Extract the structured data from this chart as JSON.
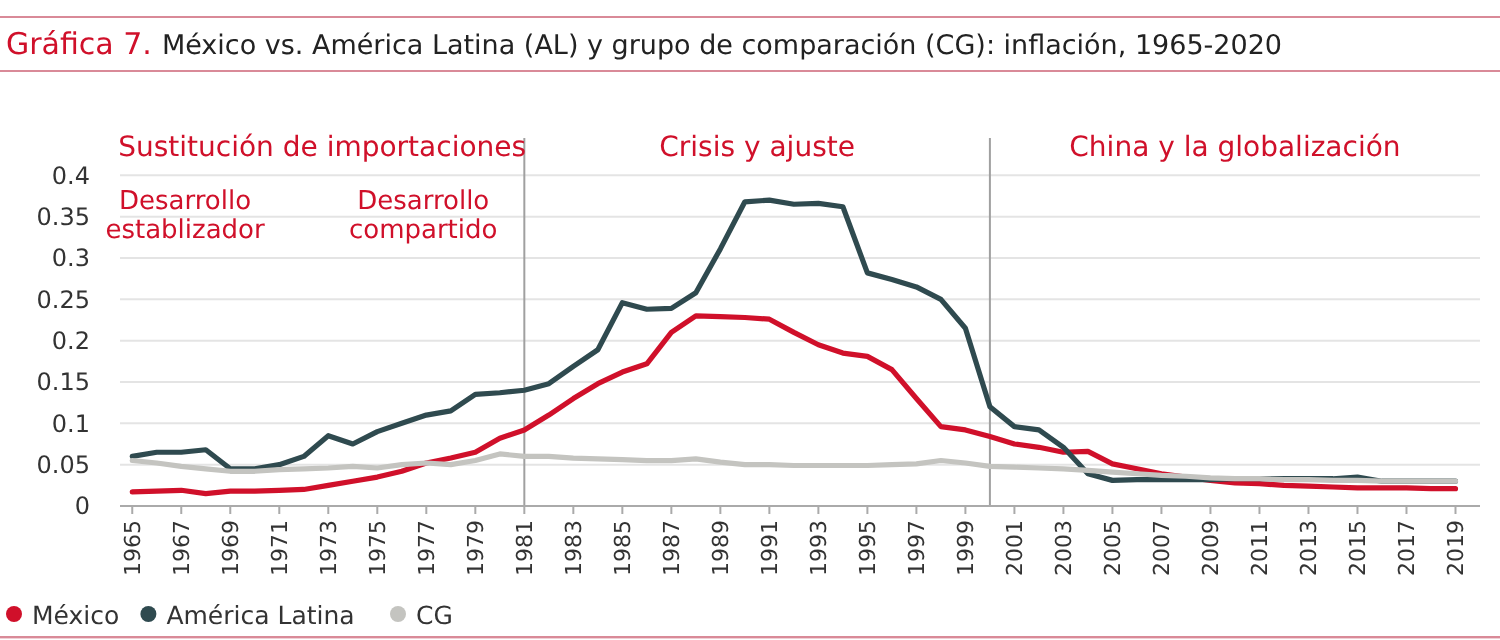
{
  "chart_data": {
    "type": "line",
    "title": "Gráfica 7.",
    "subtitle": "México vs. América Latina (AL) y grupo de comparación (CG): inflación, 1965-2020",
    "x": [
      1965,
      1966,
      1967,
      1968,
      1969,
      1970,
      1971,
      1972,
      1973,
      1974,
      1975,
      1976,
      1977,
      1978,
      1979,
      1980,
      1981,
      1982,
      1983,
      1984,
      1985,
      1986,
      1987,
      1988,
      1989,
      1990,
      1991,
      1992,
      1993,
      1994,
      1995,
      1996,
      1997,
      1998,
      1999,
      2000,
      2001,
      2002,
      2003,
      2004,
      2005,
      2006,
      2007,
      2008,
      2009,
      2010,
      2011,
      2012,
      2013,
      2014,
      2015,
      2016,
      2017,
      2018,
      2019
    ],
    "series": [
      {
        "name": "México",
        "color": "#d0102a",
        "values": [
          0.017,
          0.018,
          0.019,
          0.015,
          0.018,
          0.018,
          0.019,
          0.02,
          0.025,
          0.03,
          0.035,
          0.042,
          0.052,
          0.058,
          0.065,
          0.082,
          0.092,
          0.11,
          0.13,
          0.148,
          0.162,
          0.172,
          0.21,
          0.23,
          0.229,
          0.228,
          0.226,
          0.21,
          0.195,
          0.185,
          0.181,
          0.165,
          0.13,
          0.096,
          0.092,
          0.084,
          0.075,
          0.071,
          0.065,
          0.066,
          0.051,
          0.045,
          0.039,
          0.035,
          0.031,
          0.028,
          0.027,
          0.025,
          0.024,
          0.023,
          0.022,
          0.022,
          0.022,
          0.021,
          0.021
        ]
      },
      {
        "name": "América Latina",
        "color": "#2f4a4f",
        "values": [
          0.06,
          0.065,
          0.065,
          0.068,
          0.045,
          0.045,
          0.05,
          0.06,
          0.085,
          0.075,
          0.09,
          0.1,
          0.11,
          0.115,
          0.135,
          0.137,
          0.14,
          0.148,
          0.169,
          0.189,
          0.246,
          0.238,
          0.239,
          0.258,
          0.311,
          0.368,
          0.37,
          0.365,
          0.366,
          0.362,
          0.282,
          0.274,
          0.265,
          0.25,
          0.215,
          0.12,
          0.096,
          0.092,
          0.071,
          0.039,
          0.031,
          0.032,
          0.032,
          0.032,
          0.032,
          0.033,
          0.033,
          0.033,
          0.033,
          0.033,
          0.035,
          0.03,
          0.03,
          0.03,
          0.03
        ]
      },
      {
        "name": "CG",
        "color": "#c4c4c0",
        "values": [
          0.055,
          0.052,
          0.048,
          0.045,
          0.042,
          0.042,
          0.044,
          0.045,
          0.046,
          0.048,
          0.046,
          0.05,
          0.052,
          0.05,
          0.055,
          0.063,
          0.06,
          0.06,
          0.058,
          0.057,
          0.056,
          0.055,
          0.055,
          0.057,
          0.053,
          0.05,
          0.05,
          0.049,
          0.049,
          0.049,
          0.049,
          0.05,
          0.051,
          0.055,
          0.052,
          0.048,
          0.047,
          0.046,
          0.045,
          0.043,
          0.041,
          0.039,
          0.037,
          0.036,
          0.034,
          0.033,
          0.033,
          0.032,
          0.032,
          0.031,
          0.031,
          0.03,
          0.03,
          0.03,
          0.03
        ]
      }
    ],
    "xlim": [
      1964.5,
      2020
    ],
    "xticks": [
      1965,
      1967,
      1969,
      1971,
      1973,
      1975,
      1977,
      1979,
      1981,
      1983,
      1985,
      1987,
      1989,
      1991,
      1993,
      1995,
      1997,
      1999,
      2001,
      2003,
      2005,
      2007,
      2009,
      2011,
      2013,
      2015,
      2017,
      2019
    ],
    "ylim": [
      0,
      0.45
    ],
    "yticks": [
      0,
      0.05,
      0.1,
      0.15,
      0.2,
      0.25,
      0.3,
      0.35,
      0.4
    ],
    "grid": "y",
    "legend": "bottom left",
    "marker": "none",
    "line_style": "solid",
    "ref_lines": [
      {
        "axis": "x",
        "value": 1981,
        "color": "#a0a0a0"
      },
      {
        "axis": "x",
        "value": 2000,
        "color": "#a0a0a0"
      }
    ],
    "annotations": [
      "Sustitución de importaciones",
      "Crisis y ajuste",
      "China y la globalización",
      "Desarrollo\nestablizador",
      "Desarrollo\ncompartido"
    ]
  }
}
